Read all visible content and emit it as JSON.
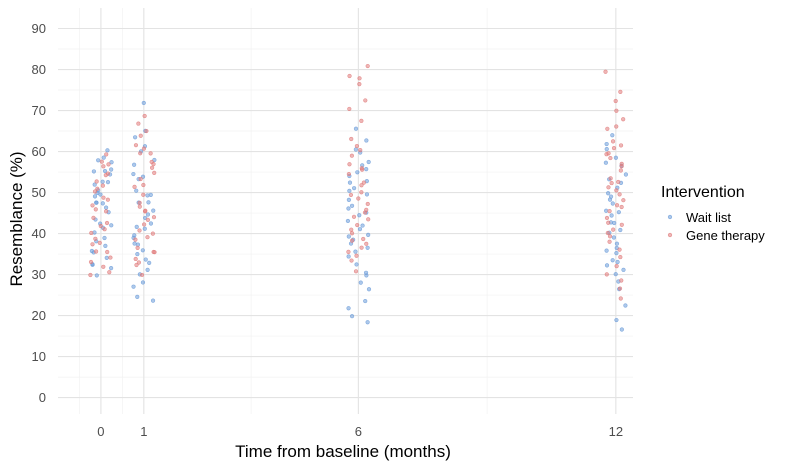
{
  "chart_data": {
    "type": "scatter",
    "title": "",
    "xlabel": "Time from baseline (months)",
    "ylabel": "Resemblance (%)",
    "xlim": [
      -1.0,
      12.4
    ],
    "ylim": [
      -4,
      95
    ],
    "x_ticks": [
      0,
      1,
      6,
      12
    ],
    "y_ticks": [
      0,
      10,
      20,
      30,
      40,
      50,
      60,
      70,
      80,
      90
    ],
    "jitter": 0.25,
    "grid": true,
    "legend": {
      "title": "Intervention",
      "position": "right"
    },
    "series": [
      {
        "name": "Wait list",
        "color": "#6a9bd8",
        "points": [
          [
            0,
            60
          ],
          [
            0,
            59
          ],
          [
            0,
            58
          ],
          [
            0,
            57
          ],
          [
            0,
            56
          ],
          [
            0,
            55
          ],
          [
            0,
            55
          ],
          [
            0,
            54
          ],
          [
            0,
            53
          ],
          [
            0,
            52
          ],
          [
            0,
            52
          ],
          [
            0,
            51
          ],
          [
            0,
            50
          ],
          [
            0,
            50
          ],
          [
            0,
            49
          ],
          [
            0,
            48
          ],
          [
            0,
            47
          ],
          [
            0,
            47
          ],
          [
            0,
            46
          ],
          [
            0,
            45
          ],
          [
            0,
            44
          ],
          [
            0,
            43
          ],
          [
            0,
            42
          ],
          [
            0,
            41
          ],
          [
            0,
            40
          ],
          [
            0,
            39
          ],
          [
            0,
            38
          ],
          [
            0,
            37
          ],
          [
            0,
            36
          ],
          [
            0,
            35
          ],
          [
            0,
            34
          ],
          [
            0,
            33
          ],
          [
            0,
            32
          ],
          [
            0,
            31
          ],
          [
            0,
            30
          ],
          [
            1,
            72
          ],
          [
            1,
            65
          ],
          [
            1,
            63
          ],
          [
            1,
            61
          ],
          [
            1,
            60
          ],
          [
            1,
            58
          ],
          [
            1,
            57
          ],
          [
            1,
            55
          ],
          [
            1,
            54
          ],
          [
            1,
            53
          ],
          [
            1,
            51
          ],
          [
            1,
            50
          ],
          [
            1,
            49
          ],
          [
            1,
            48
          ],
          [
            1,
            47
          ],
          [
            1,
            46
          ],
          [
            1,
            45
          ],
          [
            1,
            44
          ],
          [
            1,
            43
          ],
          [
            1,
            42
          ],
          [
            1,
            41
          ],
          [
            1,
            40
          ],
          [
            1,
            39
          ],
          [
            1,
            38
          ],
          [
            1,
            37
          ],
          [
            1,
            36
          ],
          [
            1,
            35
          ],
          [
            1,
            34
          ],
          [
            1,
            33
          ],
          [
            1,
            31
          ],
          [
            1,
            30
          ],
          [
            1,
            28
          ],
          [
            1,
            27
          ],
          [
            1,
            25
          ],
          [
            1,
            24
          ],
          [
            6,
            65
          ],
          [
            6,
            63
          ],
          [
            6,
            61
          ],
          [
            6,
            60
          ],
          [
            6,
            58
          ],
          [
            6,
            57
          ],
          [
            6,
            56
          ],
          [
            6,
            55
          ],
          [
            6,
            54
          ],
          [
            6,
            53
          ],
          [
            6,
            52
          ],
          [
            6,
            51
          ],
          [
            6,
            50
          ],
          [
            6,
            49
          ],
          [
            6,
            48
          ],
          [
            6,
            47
          ],
          [
            6,
            46
          ],
          [
            6,
            45
          ],
          [
            6,
            44
          ],
          [
            6,
            43
          ],
          [
            6,
            42
          ],
          [
            6,
            41
          ],
          [
            6,
            40
          ],
          [
            6,
            39
          ],
          [
            6,
            38
          ],
          [
            6,
            37
          ],
          [
            6,
            36
          ],
          [
            6,
            35
          ],
          [
            6,
            34
          ],
          [
            6,
            33
          ],
          [
            6,
            31
          ],
          [
            6,
            30
          ],
          [
            6,
            28
          ],
          [
            6,
            27
          ],
          [
            6,
            24
          ],
          [
            6,
            22
          ],
          [
            6,
            20
          ],
          [
            6,
            18
          ],
          [
            12,
            64
          ],
          [
            12,
            62
          ],
          [
            12,
            60
          ],
          [
            12,
            59
          ],
          [
            12,
            57
          ],
          [
            12,
            56
          ],
          [
            12,
            54
          ],
          [
            12,
            53
          ],
          [
            12,
            52
          ],
          [
            12,
            51
          ],
          [
            12,
            50
          ],
          [
            12,
            49
          ],
          [
            12,
            48
          ],
          [
            12,
            47
          ],
          [
            12,
            46
          ],
          [
            12,
            45
          ],
          [
            12,
            44
          ],
          [
            12,
            43
          ],
          [
            12,
            42
          ],
          [
            12,
            41
          ],
          [
            12,
            40
          ],
          [
            12,
            39
          ],
          [
            12,
            38
          ],
          [
            12,
            37
          ],
          [
            12,
            36
          ],
          [
            12,
            35
          ],
          [
            12,
            34
          ],
          [
            12,
            33
          ],
          [
            12,
            32
          ],
          [
            12,
            31
          ],
          [
            12,
            30
          ],
          [
            12,
            28
          ],
          [
            12,
            26
          ],
          [
            12,
            23
          ],
          [
            12,
            19
          ],
          [
            12,
            17
          ]
        ]
      },
      {
        "name": "Gene therapy",
        "color": "#e07a7a",
        "points": [
          [
            0,
            59
          ],
          [
            0,
            58
          ],
          [
            0,
            57
          ],
          [
            0,
            56
          ],
          [
            0,
            55
          ],
          [
            0,
            54
          ],
          [
            0,
            53
          ],
          [
            0,
            52
          ],
          [
            0,
            51
          ],
          [
            0,
            50
          ],
          [
            0,
            49
          ],
          [
            0,
            48
          ],
          [
            0,
            47
          ],
          [
            0,
            46
          ],
          [
            0,
            45
          ],
          [
            0,
            44
          ],
          [
            0,
            43
          ],
          [
            0,
            42
          ],
          [
            0,
            41
          ],
          [
            0,
            40
          ],
          [
            0,
            39
          ],
          [
            0,
            38
          ],
          [
            0,
            37
          ],
          [
            0,
            36
          ],
          [
            0,
            35
          ],
          [
            0,
            34
          ],
          [
            0,
            33
          ],
          [
            0,
            32
          ],
          [
            0,
            31
          ],
          [
            0,
            30
          ],
          [
            1,
            69
          ],
          [
            1,
            67
          ],
          [
            1,
            65
          ],
          [
            1,
            64
          ],
          [
            1,
            62
          ],
          [
            1,
            61
          ],
          [
            1,
            60
          ],
          [
            1,
            59
          ],
          [
            1,
            58
          ],
          [
            1,
            57
          ],
          [
            1,
            56
          ],
          [
            1,
            55
          ],
          [
            1,
            53
          ],
          [
            1,
            52
          ],
          [
            1,
            51
          ],
          [
            1,
            50
          ],
          [
            1,
            48
          ],
          [
            1,
            47
          ],
          [
            1,
            46
          ],
          [
            1,
            45
          ],
          [
            1,
            44
          ],
          [
            1,
            43
          ],
          [
            1,
            42
          ],
          [
            1,
            41
          ],
          [
            1,
            40
          ],
          [
            1,
            39
          ],
          [
            1,
            38
          ],
          [
            1,
            37
          ],
          [
            1,
            36
          ],
          [
            1,
            35
          ],
          [
            1,
            34
          ],
          [
            1,
            33
          ],
          [
            1,
            32
          ],
          [
            1,
            30
          ],
          [
            6,
            81
          ],
          [
            6,
            79
          ],
          [
            6,
            78
          ],
          [
            6,
            76
          ],
          [
            6,
            72
          ],
          [
            6,
            70
          ],
          [
            6,
            68
          ],
          [
            6,
            63
          ],
          [
            6,
            61
          ],
          [
            6,
            60
          ],
          [
            6,
            59
          ],
          [
            6,
            57
          ],
          [
            6,
            56
          ],
          [
            6,
            55
          ],
          [
            6,
            54
          ],
          [
            6,
            53
          ],
          [
            6,
            52
          ],
          [
            6,
            50
          ],
          [
            6,
            49
          ],
          [
            6,
            48
          ],
          [
            6,
            47
          ],
          [
            6,
            46
          ],
          [
            6,
            45
          ],
          [
            6,
            44
          ],
          [
            6,
            43
          ],
          [
            6,
            42
          ],
          [
            6,
            41
          ],
          [
            6,
            40
          ],
          [
            6,
            39
          ],
          [
            6,
            38
          ],
          [
            6,
            37
          ],
          [
            6,
            36
          ],
          [
            6,
            35
          ],
          [
            6,
            34
          ],
          [
            6,
            33
          ],
          [
            6,
            31
          ],
          [
            12,
            79
          ],
          [
            12,
            74
          ],
          [
            12,
            72
          ],
          [
            12,
            70
          ],
          [
            12,
            68
          ],
          [
            12,
            66
          ],
          [
            12,
            65
          ],
          [
            12,
            63
          ],
          [
            12,
            62
          ],
          [
            12,
            61
          ],
          [
            12,
            60
          ],
          [
            12,
            59
          ],
          [
            12,
            58
          ],
          [
            12,
            57
          ],
          [
            12,
            56
          ],
          [
            12,
            55
          ],
          [
            12,
            54
          ],
          [
            12,
            53
          ],
          [
            12,
            52
          ],
          [
            12,
            51
          ],
          [
            12,
            50
          ],
          [
            12,
            49
          ],
          [
            12,
            48
          ],
          [
            12,
            47
          ],
          [
            12,
            46
          ],
          [
            12,
            45
          ],
          [
            12,
            44
          ],
          [
            12,
            43
          ],
          [
            12,
            42
          ],
          [
            12,
            41
          ],
          [
            12,
            40
          ],
          [
            12,
            39
          ],
          [
            12,
            38
          ],
          [
            12,
            36
          ],
          [
            12,
            34
          ],
          [
            12,
            32
          ],
          [
            12,
            30
          ],
          [
            12,
            28
          ],
          [
            12,
            26
          ],
          [
            12,
            24
          ]
        ]
      }
    ]
  }
}
